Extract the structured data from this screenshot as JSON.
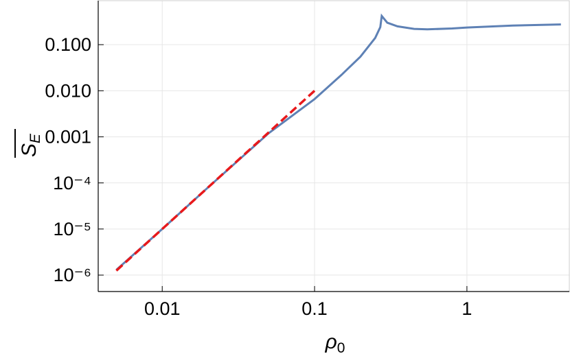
{
  "chart_data": {
    "type": "line",
    "xlabel": {
      "symbol": "ρ",
      "subscript": "0"
    },
    "ylabel": {
      "symbol": "S",
      "subscript": "E"
    },
    "xlog": true,
    "ylog": true,
    "grid": true,
    "xlim": [
      0.0038,
      4.7
    ],
    "ylim": [
      4.4e-07,
      0.9
    ],
    "xticks": [
      {
        "value": 0.01,
        "label": "0.01"
      },
      {
        "value": 0.1,
        "label": "0.1"
      },
      1
    ],
    "yticks": [
      {
        "value": 1e-06,
        "label": "10⁻⁶"
      },
      {
        "value": 1e-05,
        "label": "10⁻⁵"
      },
      {
        "value": 0.0001,
        "label": "10⁻⁴"
      },
      {
        "value": 0.001,
        "label": "0.001"
      },
      {
        "value": 0.01,
        "label": "0.010"
      },
      {
        "value": 0.1,
        "label": "0.100"
      }
    ],
    "series": [
      {
        "color": "#5e81b5",
        "dash": false,
        "x": [
          0.005,
          0.01,
          0.02,
          0.05,
          0.1,
          0.15,
          0.2,
          0.25,
          0.27,
          0.276,
          0.3,
          0.35,
          0.45,
          0.55,
          0.8,
          1,
          2,
          4.14
        ],
        "values": [
          1.3e-06,
          1e-05,
          8e-05,
          0.0012,
          0.0066,
          0.022,
          0.055,
          0.14,
          0.24,
          0.42,
          0.3,
          0.25,
          0.22,
          0.215,
          0.225,
          0.235,
          0.26,
          0.275
        ]
      },
      {
        "color": "#e8191c",
        "dash": true,
        "x": [
          0.005,
          0.1
        ],
        "values": [
          1.25e-06,
          0.01
        ]
      }
    ]
  }
}
